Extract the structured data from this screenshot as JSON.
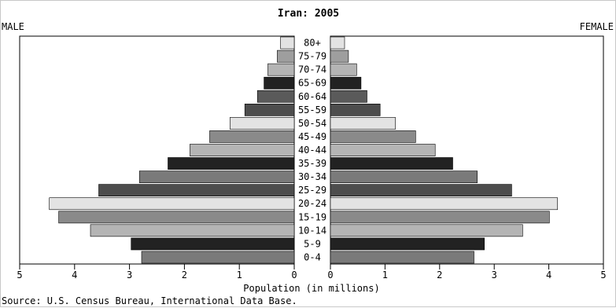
{
  "chart_data": {
    "type": "bar",
    "title": "Iran: 2005",
    "left_label": "MALE",
    "right_label": "FEMALE",
    "xlabel": "Population (in millions)",
    "source": "Source: U.S. Census Bureau, International Data Base.",
    "xlim": [
      0,
      5
    ],
    "ticks": [
      "5",
      "4",
      "3",
      "2",
      "1",
      "0",
      "0",
      "1",
      "2",
      "3",
      "4",
      "5"
    ],
    "categories": [
      "80+",
      "75-79",
      "70-74",
      "65-69",
      "60-64",
      "55-59",
      "50-54",
      "45-49",
      "40-44",
      "35-39",
      "30-34",
      "25-29",
      "20-24",
      "15-19",
      "10-14",
      "5-9",
      "0-4"
    ],
    "series": [
      {
        "name": "MALE",
        "values": [
          0.25,
          0.31,
          0.48,
          0.55,
          0.67,
          0.9,
          1.17,
          1.54,
          1.9,
          2.3,
          2.82,
          3.56,
          4.46,
          4.29,
          3.71,
          2.97,
          2.78
        ]
      },
      {
        "name": "FEMALE",
        "values": [
          0.26,
          0.33,
          0.48,
          0.56,
          0.67,
          0.91,
          1.19,
          1.56,
          1.92,
          2.24,
          2.69,
          3.32,
          4.16,
          4.01,
          3.52,
          2.82,
          2.63
        ]
      }
    ],
    "bar_colors": [
      "#e3e3e3",
      "#9e9e9e",
      "#b4b4b4",
      "#222222",
      "#5a5a5a",
      "#4d4d4d",
      "#e3e3e3",
      "#8a8a8a",
      "#b4b4b4",
      "#222222",
      "#7a7a7a",
      "#4d4d4d",
      "#e3e3e3",
      "#8a8a8a",
      "#b4b4b4",
      "#222222",
      "#7a7a7a"
    ],
    "grid": false
  }
}
